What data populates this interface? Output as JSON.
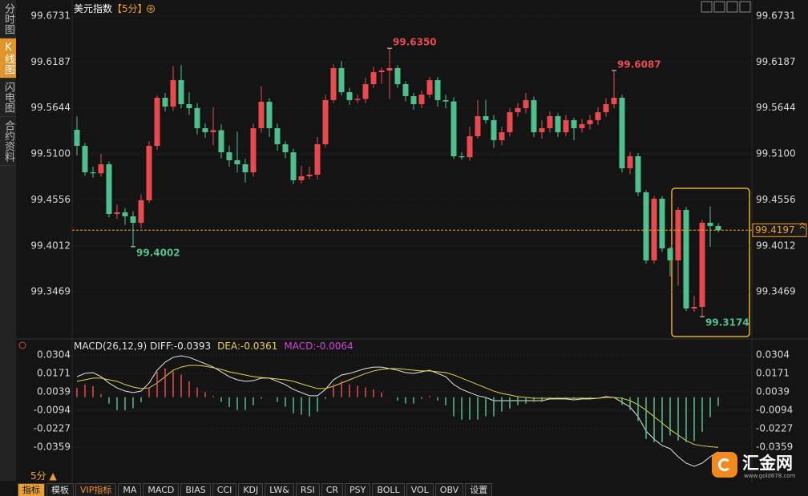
{
  "sidebar": {
    "tabs": [
      "分时图",
      "K线图",
      "闪电图",
      "合约资料"
    ],
    "active": 1
  },
  "chart_data": [
    {
      "type": "candlestick",
      "title": "美元指数",
      "subtitle": "【5分】",
      "up_color": "#e84a50",
      "down_color": "#4fc08d",
      "ylim": [
        99.2939,
        99.6731
      ],
      "yticks": [
        99.6731,
        99.6187,
        99.5644,
        {
          "value": 99.51,
          "label": "99.5100"
        },
        99.4556,
        99.4012,
        99.3469
      ],
      "grid": true,
      "current_price": 99.4197,
      "current_price_color": "#f0a030",
      "high_labels": [
        {
          "index": 39,
          "value": 99.635,
          "label": "99.6350"
        },
        {
          "index": 67,
          "value": 99.6087
        }
      ],
      "low_labels": [
        {
          "index": 7,
          "value": 99.4002
        },
        {
          "index": 78,
          "value": 99.3174
        }
      ],
      "open": [
        99.5385,
        99.5195,
        99.4882,
        99.487,
        99.4977,
        99.4389,
        99.4408,
        99.4361,
        99.4285,
        99.4551,
        99.5195,
        99.5764,
        99.566,
        99.5973,
        99.5688,
        99.5641,
        99.5404,
        99.5356,
        99.538,
        99.5119,
        99.5025,
        99.4977,
        99.4882,
        99.5404,
        99.5717,
        99.5404,
        99.5214,
        99.5119,
        99.4788,
        99.4835,
        99.4854,
        99.5214,
        99.5736,
        99.6115,
        99.583,
        99.5736,
        99.575,
        99.5925,
        99.6067,
        99.6086,
        99.6115,
        99.5925,
        99.5783,
        99.5688,
        99.5802,
        99.5973,
        99.5736,
        99.572,
        99.5072,
        99.506,
        99.5309,
        99.5546,
        99.5499,
        99.5262,
        99.5356,
        99.5593,
        99.5641,
        99.5736,
        99.5356,
        99.5404,
        99.5546,
        99.5356,
        99.5499,
        99.5404,
        99.5451,
        99.5499,
        99.5593,
        99.5688,
        99.5764,
        99.493,
        99.5072,
        99.4645,
        99.384,
        99.457,
        99.3982,
        99.384,
        99.4437,
        99.3271,
        99.329,
        99.4285,
        99.4247
      ],
      "close": [
        99.5195,
        99.4882,
        99.487,
        99.4977,
        99.4389,
        99.4408,
        99.4361,
        99.4285,
        99.4551,
        99.5195,
        99.5764,
        99.566,
        99.5973,
        99.5688,
        99.5641,
        99.5404,
        99.5356,
        99.538,
        99.5119,
        99.5025,
        99.4977,
        99.4882,
        99.5404,
        99.5717,
        99.5404,
        99.5214,
        99.5119,
        99.4788,
        99.4835,
        99.4854,
        99.5214,
        99.5736,
        99.6115,
        99.583,
        99.5736,
        99.575,
        99.5925,
        99.6067,
        99.6086,
        99.6115,
        99.5925,
        99.5783,
        99.5688,
        99.5802,
        99.5973,
        99.5736,
        99.572,
        99.5072,
        99.506,
        99.5309,
        99.5546,
        99.5499,
        99.5262,
        99.5356,
        99.5593,
        99.5641,
        99.5736,
        99.5356,
        99.5404,
        99.5546,
        99.5356,
        99.5499,
        99.5404,
        99.5451,
        99.5499,
        99.5593,
        99.5688,
        99.5764,
        99.493,
        99.5072,
        99.4645,
        99.384,
        99.457,
        99.3982,
        99.384,
        99.4437,
        99.3271,
        99.329,
        99.4285,
        99.4247,
        99.4197
      ],
      "high": [
        99.5545,
        99.523,
        99.495,
        99.51,
        99.501,
        99.45,
        99.446,
        99.442,
        99.462,
        99.525,
        99.579,
        99.582,
        99.614,
        99.615,
        99.583,
        99.57,
        99.546,
        99.565,
        99.545,
        99.52,
        99.536,
        99.504,
        99.546,
        99.59,
        99.576,
        99.546,
        99.525,
        99.516,
        99.496,
        99.495,
        99.53,
        99.58,
        99.616,
        99.62,
        99.588,
        99.58,
        99.6,
        99.613,
        99.612,
        99.635,
        99.615,
        99.596,
        99.582,
        99.585,
        99.601,
        99.601,
        99.58,
        99.577,
        99.512,
        99.542,
        99.574,
        99.574,
        99.556,
        99.542,
        99.564,
        99.57,
        99.582,
        99.578,
        99.55,
        99.56,
        99.558,
        99.556,
        99.553,
        99.551,
        99.556,
        99.565,
        99.576,
        99.6087,
        99.58,
        99.512,
        99.511,
        99.467,
        99.46,
        99.46,
        99.4,
        99.447,
        99.447,
        99.342,
        99.432,
        99.448,
        99.428
      ],
      "low": [
        99.508,
        99.484,
        99.482,
        99.483,
        99.435,
        99.433,
        99.426,
        99.4002,
        99.422,
        99.452,
        99.515,
        99.56,
        99.561,
        99.564,
        99.556,
        99.533,
        99.529,
        99.52,
        99.505,
        99.495,
        99.488,
        99.476,
        99.483,
        99.535,
        99.53,
        99.514,
        99.505,
        99.474,
        99.475,
        99.48,
        99.48,
        99.518,
        99.57,
        99.579,
        99.568,
        99.57,
        99.57,
        99.588,
        99.593,
        99.575,
        99.588,
        99.572,
        99.562,
        99.564,
        99.576,
        99.566,
        99.564,
        99.504,
        99.503,
        99.502,
        99.528,
        99.546,
        99.517,
        99.52,
        99.531,
        99.554,
        99.558,
        99.53,
        99.528,
        99.535,
        99.53,
        99.531,
        99.526,
        99.535,
        99.539,
        99.544,
        99.554,
        99.564,
        99.488,
        99.486,
        99.46,
        99.38,
        99.38,
        99.394,
        99.365,
        99.354,
        99.324,
        99.323,
        99.3174,
        99.4,
        99.417
      ]
    },
    {
      "type": "macd",
      "indicator": "MACD(26,12,9)",
      "ylim": [
        -0.0556,
        0.0304
      ],
      "yticks": [
        0.0304,
        0.0171,
        0.0039,
        -0.0094,
        -0.0227,
        -0.0359
      ],
      "grid": true,
      "series": [
        {
          "name": "DIFF:-0.0393",
          "kind": "line",
          "color": "#e8e8e8",
          "values": [
            0.0148,
            0.0171,
            0.0177,
            0.0148,
            0.0102,
            0.0067,
            0.0044,
            0.0033,
            0.0044,
            0.0102,
            0.0194,
            0.0252,
            0.0287,
            0.0298,
            0.0287,
            0.0264,
            0.0241,
            0.0217,
            0.0183,
            0.0148,
            0.0125,
            0.0114,
            0.0119,
            0.0137,
            0.0137,
            0.0114,
            0.0091,
            0.0056,
            0.0033,
            0.001,
            0.001,
            0.0056,
            0.0125,
            0.016,
            0.0171,
            0.0189,
            0.0206,
            0.0217,
            0.0217,
            0.0206,
            0.0194,
            0.0177,
            0.0171,
            0.0183,
            0.0194,
            0.0171,
            0.0148,
            0.0091,
            0.0056,
            0.0033,
            0.001,
            -0.0002,
            -0.0025,
            -0.0025,
            -0.0025,
            -0.0025,
            -0.0025,
            -0.0025,
            -0.0025,
            -0.0013,
            -0.0013,
            -0.0013,
            -0.0019,
            -0.0013,
            -0.0013,
            -0.0008,
            0.0004,
            -0.0002,
            -0.0036,
            -0.0071,
            -0.014,
            -0.0244,
            -0.0302,
            -0.0348,
            -0.0371,
            -0.0429,
            -0.0475,
            -0.0498,
            -0.0475,
            -0.0429,
            -0.0393
          ]
        },
        {
          "name": "DEA:-0.0361",
          "kind": "line",
          "color": "#e6d44a",
          "values": [
            0.0114,
            0.0125,
            0.0137,
            0.0137,
            0.0125,
            0.0114,
            0.0091,
            0.0073,
            0.0062,
            0.0067,
            0.0102,
            0.0148,
            0.0194,
            0.0217,
            0.0229,
            0.0229,
            0.0223,
            0.0212,
            0.02,
            0.0183,
            0.0171,
            0.016,
            0.0148,
            0.0142,
            0.0137,
            0.0131,
            0.0125,
            0.0114,
            0.0096,
            0.0079,
            0.0062,
            0.0062,
            0.0079,
            0.0102,
            0.0125,
            0.0148,
            0.0171,
            0.0189,
            0.02,
            0.0206,
            0.0206,
            0.02,
            0.0194,
            0.0189,
            0.0189,
            0.0183,
            0.0177,
            0.016,
            0.0137,
            0.0114,
            0.0091,
            0.0067,
            0.0044,
            0.0027,
            0.0016,
            0.0004,
            -0.0002,
            -0.0008,
            -0.0008,
            -0.0008,
            -0.0008,
            -0.0008,
            -0.0008,
            -0.0008,
            -0.0008,
            -0.0008,
            -0.0002,
            -0.0002,
            -0.0008,
            -0.0025,
            -0.0054,
            -0.0094,
            -0.014,
            -0.0186,
            -0.0233,
            -0.0273,
            -0.0313,
            -0.034,
            -0.035,
            -0.0357,
            -0.0361
          ]
        },
        {
          "name": "MACD:-0.0064",
          "kind": "bar",
          "color": "#d544d5",
          "up_color": "#e84a50",
          "down_color": "#4fc08d",
          "values": [
            0.0068,
            0.0092,
            0.008,
            0.0022,
            -0.0046,
            -0.0094,
            -0.0094,
            -0.008,
            -0.0036,
            0.007,
            0.0184,
            0.0208,
            0.0186,
            0.0162,
            0.0116,
            0.007,
            0.0036,
            0.001,
            -0.0034,
            -0.007,
            -0.0092,
            -0.0092,
            -0.0058,
            -0.001,
            0,
            -0.0034,
            -0.0068,
            -0.0116,
            -0.0126,
            -0.0138,
            -0.0104,
            -0.0012,
            0.0092,
            0.0116,
            0.0092,
            0.0082,
            0.007,
            0.0056,
            0.0034,
            0,
            -0.0024,
            -0.0046,
            -0.0046,
            -0.0012,
            0.001,
            -0.0024,
            -0.0058,
            -0.0138,
            -0.0162,
            -0.0162,
            -0.0162,
            -0.0138,
            -0.0138,
            -0.0104,
            -0.0082,
            -0.0058,
            -0.0046,
            -0.0034,
            -0.0034,
            -0.001,
            -0.001,
            -0.001,
            -0.0022,
            -0.001,
            -0.001,
            0,
            0.0012,
            0,
            -0.0056,
            -0.0092,
            -0.0172,
            -0.03,
            -0.0324,
            -0.0324,
            -0.0276,
            -0.0312,
            -0.0324,
            -0.0316,
            -0.025,
            -0.0144,
            -0.0064
          ]
        }
      ]
    }
  ],
  "toolbar": {
    "period": "5分 ▲",
    "buttons": [
      "指标",
      "模板",
      "VIP指标",
      "MA",
      "MACD",
      "BIAS",
      "CCI",
      "KDJ",
      "LW&",
      "RSI",
      "CR",
      "PSY",
      "BOLL",
      "VOL",
      "OBV",
      "设置"
    ],
    "active": 0,
    "highlight": 2
  },
  "logo": {
    "name": "汇金网",
    "url": "www.gold678.com"
  }
}
